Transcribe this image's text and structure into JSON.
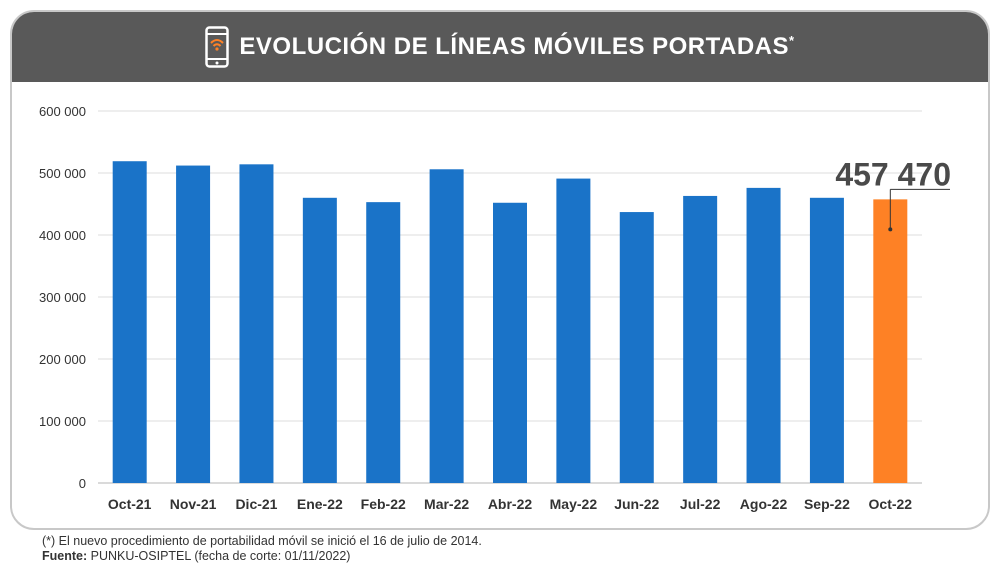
{
  "header": {
    "title": "EVOLUCIÓN DE LÍNEAS MÓVILES PORTADAS",
    "title_mark": "*",
    "icon": "mobile-wifi-icon",
    "background": "#595959"
  },
  "chart_data": {
    "type": "bar",
    "categories": [
      "Oct-21",
      "Nov-21",
      "Dic-21",
      "Ene-22",
      "Feb-22",
      "Mar-22",
      "Abr-22",
      "May-22",
      "Jun-22",
      "Jul-22",
      "Ago-22",
      "Sep-22",
      "Oct-22"
    ],
    "values": [
      519000,
      512000,
      514000,
      460000,
      453000,
      506000,
      452000,
      491000,
      437000,
      463000,
      476000,
      460000,
      457470
    ],
    "ylim": [
      0,
      600000
    ],
    "yticks": [
      0,
      100000,
      200000,
      300000,
      400000,
      500000,
      600000
    ],
    "ytick_labels": [
      "0",
      "100 000",
      "200 000",
      "300 000",
      "400 000",
      "500 000",
      "600 000"
    ],
    "grid": true,
    "bar_color": "#1a73c8",
    "highlight_color": "#fe8125",
    "highlight_index": 12,
    "annotation": {
      "text": "457 470",
      "category": "Oct-22"
    },
    "xlabel": "",
    "ylabel": ""
  },
  "footnote": {
    "note": "(*) El nuevo procedimiento de portabilidad móvil se inició el 16 de julio de 2014.",
    "source_label": "Fuente:",
    "source_text": " PUNKU-OSIPTEL (fecha de corte: 01/11/2022)"
  }
}
